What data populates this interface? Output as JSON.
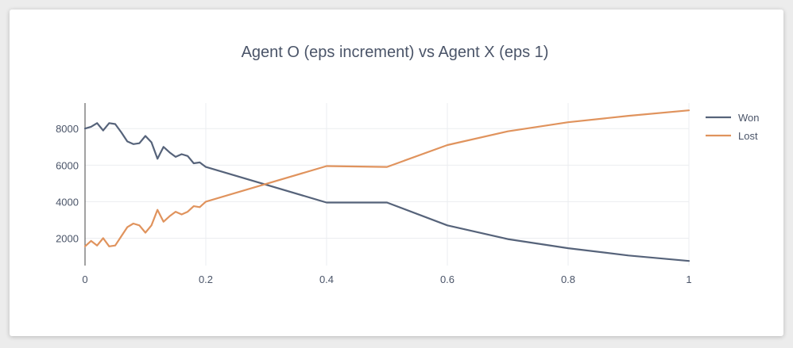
{
  "chart_data": {
    "type": "line",
    "title": "Agent O (eps increment) vs Agent X (eps 1)",
    "xlabel": "",
    "ylabel": "",
    "xlim": [
      0,
      1
    ],
    "ylim": [
      500,
      9400
    ],
    "x_ticks": [
      0,
      0.2,
      0.4,
      0.6,
      0.8,
      1
    ],
    "x_tick_labels": [
      "0",
      "0.2",
      "0.4",
      "0.6",
      "0.8",
      "1"
    ],
    "y_ticks": [
      2000,
      4000,
      6000,
      8000
    ],
    "y_tick_labels": [
      "2000",
      "4000",
      "6000",
      "8000"
    ],
    "grid": true,
    "legend_position": "top-right",
    "series": [
      {
        "name": "Won",
        "color": "#56637a",
        "x": [
          0,
          0.01,
          0.02,
          0.03,
          0.04,
          0.05,
          0.06,
          0.07,
          0.08,
          0.09,
          0.1,
          0.11,
          0.12,
          0.13,
          0.14,
          0.15,
          0.16,
          0.17,
          0.18,
          0.19,
          0.2,
          0.4,
          0.5,
          0.6,
          0.7,
          0.8,
          0.9,
          1
        ],
        "y": [
          8000,
          8100,
          8300,
          7900,
          8300,
          8250,
          7800,
          7300,
          7150,
          7200,
          7600,
          7250,
          6350,
          7000,
          6700,
          6450,
          6600,
          6500,
          6100,
          6150,
          5900,
          3950,
          3950,
          2700,
          1950,
          1450,
          1050,
          750
        ]
      },
      {
        "name": "Lost",
        "color": "#e0935d",
        "x": [
          0,
          0.01,
          0.02,
          0.03,
          0.04,
          0.05,
          0.06,
          0.07,
          0.08,
          0.09,
          0.1,
          0.11,
          0.12,
          0.13,
          0.14,
          0.15,
          0.16,
          0.17,
          0.18,
          0.19,
          0.2,
          0.4,
          0.5,
          0.6,
          0.7,
          0.8,
          0.9,
          1
        ],
        "y": [
          1550,
          1850,
          1600,
          2000,
          1550,
          1600,
          2100,
          2600,
          2800,
          2700,
          2300,
          2700,
          3550,
          2900,
          3200,
          3450,
          3300,
          3450,
          3750,
          3700,
          4000,
          5950,
          5900,
          7100,
          7850,
          8350,
          8700,
          9000
        ]
      }
    ]
  }
}
